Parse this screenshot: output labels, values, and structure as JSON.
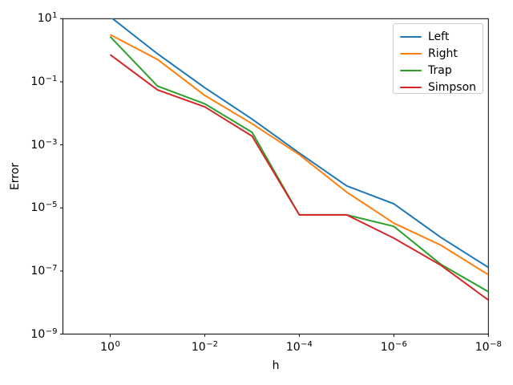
{
  "chart_data": {
    "type": "line",
    "title": "",
    "xlabel": "h",
    "ylabel": "Error",
    "x_scale": "log",
    "y_scale": "log",
    "x_inverted": true,
    "grid": false,
    "x": [
      1,
      0.1,
      0.01,
      0.001,
      0.0001,
      1e-05,
      1e-06,
      1e-07,
      1e-08
    ],
    "series": [
      {
        "name": "Left",
        "color": "#1f77b4",
        "values": [
          11.5,
          0.77,
          0.065,
          0.0066,
          0.00055,
          5e-05,
          1.35e-05,
          1.15e-06,
          1.3e-07
        ]
      },
      {
        "name": "Right",
        "color": "#ff7f0e",
        "values": [
          3.1,
          0.51,
          0.037,
          0.0047,
          0.00049,
          3.2e-05,
          3.3e-06,
          6.5e-07,
          7.6e-08
        ]
      },
      {
        "name": "Trap",
        "color": "#2ca02c",
        "values": [
          2.7,
          0.073,
          0.02,
          0.0025,
          6e-06,
          6e-06,
          2.6e-06,
          1.6e-07,
          2.2e-08
        ]
      },
      {
        "name": "Simpson",
        "color": "#d62728",
        "values": [
          0.72,
          0.055,
          0.016,
          0.0019,
          6e-06,
          6e-06,
          1.1e-06,
          1.5e-07,
          1.2e-08
        ]
      }
    ],
    "x_axis": {
      "tick_exponents": [
        0,
        -2,
        -4,
        -6,
        -8
      ],
      "lim_exponents": [
        1,
        -8
      ],
      "tick_label_base": "10"
    },
    "y_axis": {
      "tick_exponents": [
        1,
        -1,
        -3,
        -5,
        -7,
        -9
      ],
      "lim_exponents": [
        1,
        -9
      ],
      "tick_label_base": "10"
    },
    "legend": {
      "position": "upper right",
      "entries": [
        "Left",
        "Right",
        "Trap",
        "Simpson"
      ]
    }
  }
}
